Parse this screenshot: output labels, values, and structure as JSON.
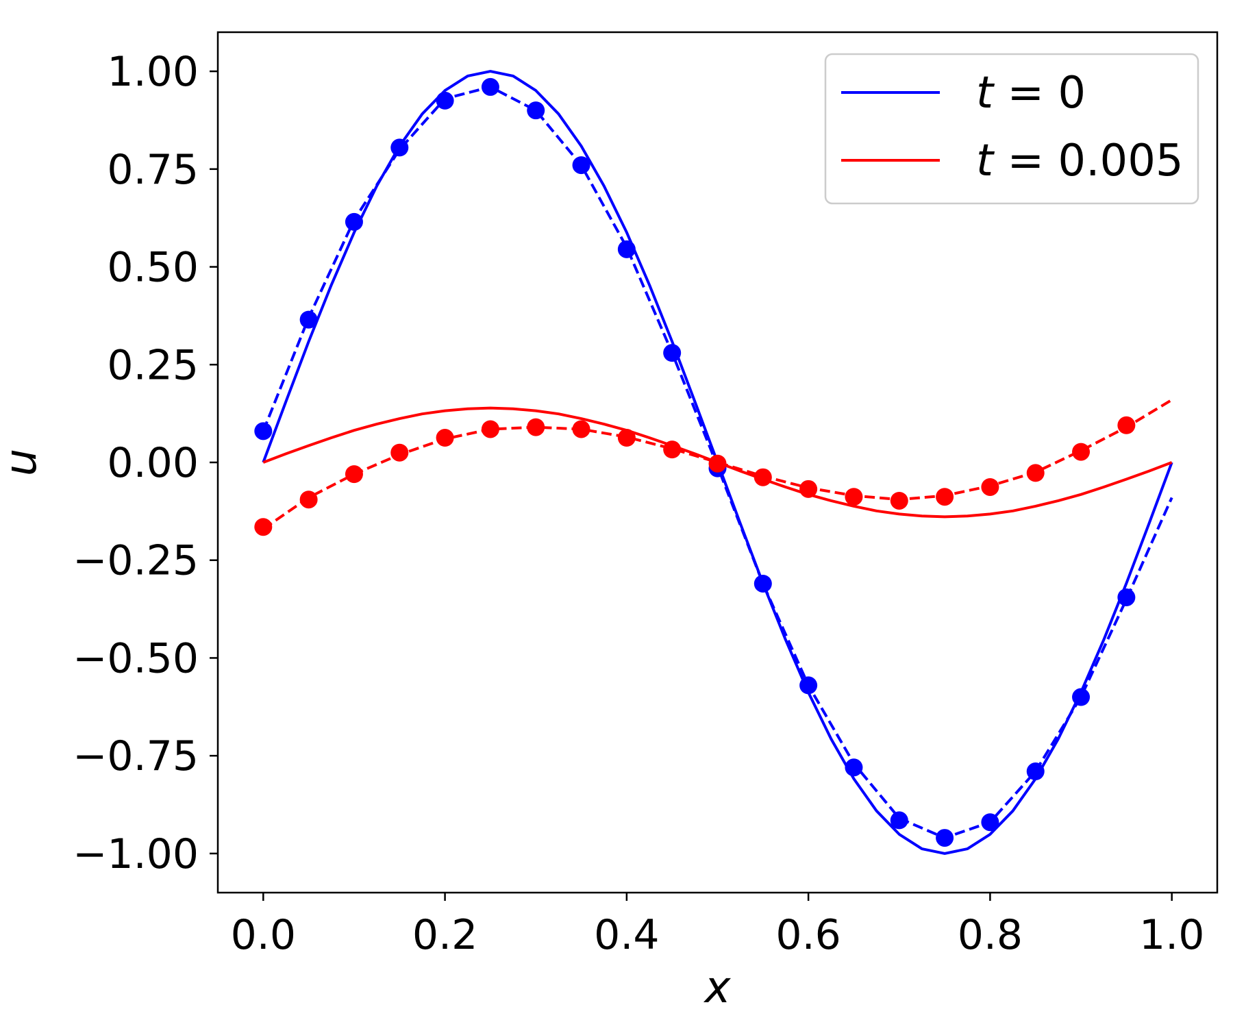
{
  "chart_data": {
    "type": "line",
    "xlabel": "x",
    "ylabel": "u",
    "xlim": [
      -0.05,
      1.05
    ],
    "ylim": [
      -1.1,
      1.1
    ],
    "xticks": [
      0.0,
      0.2,
      0.4,
      0.6,
      0.8,
      1.0
    ],
    "xtick_labels": [
      "0.0",
      "0.2",
      "0.4",
      "0.6",
      "0.8",
      "1.0"
    ],
    "yticks": [
      1.0,
      0.75,
      0.5,
      0.25,
      0.0,
      -0.25,
      -0.5,
      -0.75,
      -1.0
    ],
    "ytick_labels": [
      "1.00",
      "0.75",
      "0.50",
      "0.25",
      "0.00",
      "−0.25",
      "−0.50",
      "−0.75",
      "−1.00"
    ],
    "grid": false,
    "legend_position": "top-right",
    "legend": [
      {
        "var": "t",
        "eq": " = ",
        "val": "0",
        "color": "#0000ff"
      },
      {
        "var": "t",
        "eq": " = ",
        "val": "0.005",
        "color": "#ff0000"
      }
    ],
    "series": [
      {
        "style": "solid",
        "color": "#0000ff",
        "x": [
          0.0,
          0.025,
          0.05,
          0.075,
          0.1,
          0.125,
          0.15,
          0.175,
          0.2,
          0.225,
          0.25,
          0.275,
          0.3,
          0.325,
          0.35,
          0.375,
          0.4,
          0.425,
          0.45,
          0.475,
          0.5,
          0.525,
          0.55,
          0.575,
          0.6,
          0.625,
          0.65,
          0.675,
          0.7,
          0.725,
          0.75,
          0.775,
          0.8,
          0.825,
          0.85,
          0.875,
          0.9,
          0.925,
          0.95,
          0.975,
          1.0
        ],
        "y": [
          0.0,
          0.156,
          0.309,
          0.454,
          0.588,
          0.707,
          0.809,
          0.891,
          0.951,
          0.988,
          1.0,
          0.988,
          0.951,
          0.891,
          0.809,
          0.707,
          0.588,
          0.454,
          0.309,
          0.156,
          0.0,
          -0.156,
          -0.309,
          -0.454,
          -0.588,
          -0.707,
          -0.809,
          -0.891,
          -0.951,
          -0.988,
          -1.0,
          -0.988,
          -0.951,
          -0.891,
          -0.809,
          -0.707,
          -0.588,
          -0.454,
          -0.309,
          -0.156,
          0.0
        ]
      },
      {
        "style": "dashed",
        "color": "#0000ff",
        "x": [
          0.0,
          0.05,
          0.1,
          0.15,
          0.2,
          0.25,
          0.3,
          0.35,
          0.4,
          0.45,
          0.5,
          0.55,
          0.6,
          0.65,
          0.7,
          0.75,
          0.8,
          0.85,
          0.9,
          0.95,
          1.0
        ],
        "y": [
          0.08,
          0.37,
          0.62,
          0.8,
          0.93,
          0.96,
          0.9,
          0.76,
          0.55,
          0.28,
          -0.01,
          -0.31,
          -0.57,
          -0.77,
          -0.91,
          -0.96,
          -0.92,
          -0.79,
          -0.6,
          -0.35,
          -0.09
        ]
      },
      {
        "style": "markers",
        "color": "#0000ff",
        "x": [
          0.0,
          0.05,
          0.1,
          0.15,
          0.2,
          0.25,
          0.3,
          0.35,
          0.4,
          0.45,
          0.5,
          0.55,
          0.6,
          0.65,
          0.7,
          0.75,
          0.8,
          0.85,
          0.9,
          0.95
        ],
        "y": [
          0.08,
          0.365,
          0.615,
          0.805,
          0.925,
          0.96,
          0.9,
          0.76,
          0.545,
          0.28,
          -0.015,
          -0.31,
          -0.57,
          -0.78,
          -0.915,
          -0.96,
          -0.92,
          -0.79,
          -0.6,
          -0.345
        ]
      },
      {
        "style": "solid",
        "color": "#ff0000",
        "x": [
          0.0,
          0.025,
          0.05,
          0.075,
          0.1,
          0.125,
          0.15,
          0.175,
          0.2,
          0.225,
          0.25,
          0.275,
          0.3,
          0.325,
          0.35,
          0.375,
          0.4,
          0.425,
          0.45,
          0.475,
          0.5,
          0.525,
          0.55,
          0.575,
          0.6,
          0.625,
          0.65,
          0.675,
          0.7,
          0.725,
          0.75,
          0.775,
          0.8,
          0.825,
          0.85,
          0.875,
          0.9,
          0.925,
          0.95,
          0.975,
          1.0
        ],
        "y": [
          0.0,
          0.022,
          0.043,
          0.063,
          0.082,
          0.098,
          0.112,
          0.124,
          0.132,
          0.137,
          0.139,
          0.137,
          0.132,
          0.124,
          0.112,
          0.098,
          0.082,
          0.063,
          0.043,
          0.022,
          0.0,
          -0.022,
          -0.043,
          -0.063,
          -0.082,
          -0.098,
          -0.112,
          -0.124,
          -0.132,
          -0.137,
          -0.139,
          -0.137,
          -0.132,
          -0.124,
          -0.112,
          -0.098,
          -0.082,
          -0.063,
          -0.043,
          -0.022,
          0.0
        ]
      },
      {
        "style": "dashed",
        "color": "#ff0000",
        "x": [
          0.0,
          0.05,
          0.1,
          0.15,
          0.2,
          0.25,
          0.3,
          0.35,
          0.4,
          0.45,
          0.5,
          0.55,
          0.6,
          0.65,
          0.7,
          0.75,
          0.8,
          0.85,
          0.9,
          0.95,
          1.0
        ],
        "y": [
          -0.17,
          -0.09,
          -0.03,
          0.02,
          0.06,
          0.085,
          0.09,
          0.085,
          0.065,
          0.035,
          0.0,
          -0.035,
          -0.065,
          -0.085,
          -0.095,
          -0.085,
          -0.06,
          -0.025,
          0.03,
          0.09,
          0.16
        ]
      },
      {
        "style": "markers",
        "color": "#ff0000",
        "x": [
          0.0,
          0.05,
          0.1,
          0.15,
          0.2,
          0.25,
          0.3,
          0.35,
          0.4,
          0.45,
          0.5,
          0.55,
          0.6,
          0.65,
          0.7,
          0.75,
          0.8,
          0.85,
          0.9,
          0.95
        ],
        "y": [
          -0.165,
          -0.095,
          -0.03,
          0.025,
          0.063,
          0.085,
          0.09,
          0.085,
          0.063,
          0.033,
          -0.003,
          -0.038,
          -0.068,
          -0.088,
          -0.098,
          -0.088,
          -0.063,
          -0.027,
          0.027,
          0.095
        ]
      }
    ]
  }
}
